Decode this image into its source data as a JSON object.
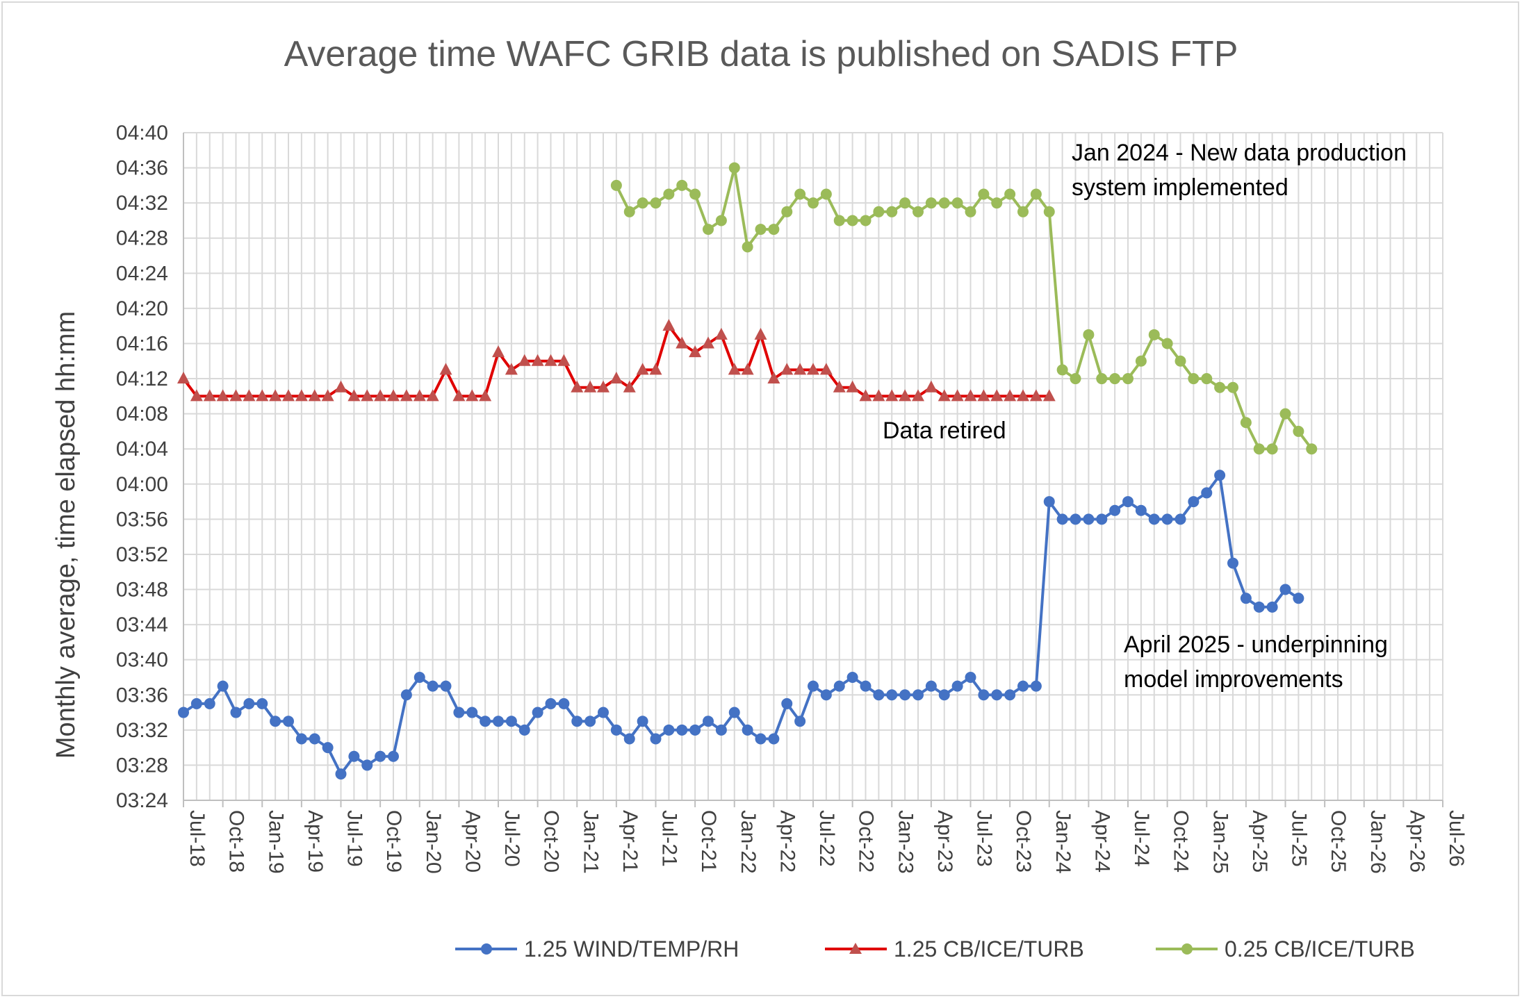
{
  "chart_data": {
    "type": "line",
    "title": "Average time WAFC GRIB data is published on SADIS FTP",
    "xlabel": "",
    "ylabel": "Monthly average, time elapsed  hh:mm",
    "y_unit": "minutes elapsed",
    "ylim": [
      204,
      280
    ],
    "y_ticks": [
      "03:24",
      "03:28",
      "03:32",
      "03:36",
      "03:40",
      "03:44",
      "03:48",
      "03:52",
      "03:56",
      "04:00",
      "04:04",
      "04:08",
      "04:12",
      "04:16",
      "04:20",
      "04:24",
      "04:28",
      "04:32",
      "04:36",
      "04:40"
    ],
    "x_ticks": [
      "Jul-18",
      "Oct-18",
      "Jan-19",
      "Apr-19",
      "Jul-19",
      "Oct-19",
      "Jan-20",
      "Apr-20",
      "Jul-20",
      "Oct-20",
      "Jan-21",
      "Apr-21",
      "Jul-21",
      "Oct-21",
      "Jan-22",
      "Apr-22",
      "Jul-22",
      "Oct-22",
      "Jan-23",
      "Apr-23",
      "Jul-23",
      "Oct-23",
      "Jan-24",
      "Apr-24",
      "Jul-24",
      "Oct-24",
      "Jan-25",
      "Apr-25",
      "Jul-25",
      "Oct-25",
      "Jan-26",
      "Apr-26",
      "Jul-26"
    ],
    "x_start": "Jul-18",
    "x_months_total": 96,
    "grid": true,
    "legend_position": "bottom",
    "series": [
      {
        "name": "1.25 WIND/TEMP/RH",
        "color": "#4472C4",
        "marker": "circle",
        "start_month": 0,
        "values": [
          214,
          215,
          215,
          217,
          214,
          215,
          215,
          213,
          213,
          211,
          211,
          210,
          207,
          209,
          208,
          209,
          209,
          216,
          218,
          217,
          217,
          214,
          214,
          213,
          213,
          213,
          212,
          214,
          215,
          215,
          213,
          213,
          214,
          212,
          211,
          213,
          211,
          212,
          212,
          212,
          213,
          212,
          214,
          212,
          211,
          211,
          215,
          213,
          217,
          216,
          217,
          218,
          217,
          216,
          216,
          216,
          216,
          217,
          216,
          217,
          218,
          216,
          216,
          216,
          217,
          217,
          238,
          236,
          236,
          236,
          236,
          237,
          238,
          237,
          236,
          236,
          236,
          238,
          239,
          241,
          231,
          227,
          226,
          226,
          228,
          227
        ]
      },
      {
        "name": "1.25 CB/ICE/TURB",
        "color": "#E00000",
        "marker": "triangle",
        "start_month": 0,
        "values": [
          252,
          250,
          250,
          250,
          250,
          250,
          250,
          250,
          250,
          250,
          250,
          250,
          251,
          250,
          250,
          250,
          250,
          250,
          250,
          250,
          253,
          250,
          250,
          250,
          255,
          253,
          254,
          254,
          254,
          254,
          251,
          251,
          251,
          252,
          251,
          253,
          253,
          258,
          256,
          255,
          256,
          257,
          253,
          253,
          257,
          252,
          253,
          253,
          253,
          253,
          251,
          251,
          250,
          250,
          250,
          250,
          250,
          251,
          250,
          250,
          250,
          250,
          250,
          250,
          250,
          250,
          250
        ]
      },
      {
        "name": "0.25 CB/ICE/TURB",
        "color": "#9BBB59",
        "marker": "circle",
        "start_month": 33,
        "values": [
          274,
          271,
          272,
          272,
          273,
          274,
          273,
          269,
          270,
          276,
          267,
          269,
          269,
          271,
          273,
          272,
          273,
          270,
          270,
          270,
          271,
          271,
          272,
          271,
          272,
          272,
          272,
          271,
          273,
          272,
          273,
          271,
          273,
          271,
          253,
          252,
          257,
          252,
          252,
          252,
          254,
          257,
          256,
          254,
          252,
          252,
          251,
          251,
          247,
          244,
          244,
          248,
          246,
          244
        ]
      }
    ],
    "annotations": [
      {
        "text": "Jan 2024 - New data production",
        "anchor": "upper-right"
      },
      {
        "text": "system implemented",
        "anchor": "upper-right"
      },
      {
        "text": "Data retired",
        "anchor": "middle-center"
      },
      {
        "text": "April 2025 - underpinning",
        "anchor": "lower-right"
      },
      {
        "text": "model improvements",
        "anchor": "lower-right"
      }
    ]
  }
}
